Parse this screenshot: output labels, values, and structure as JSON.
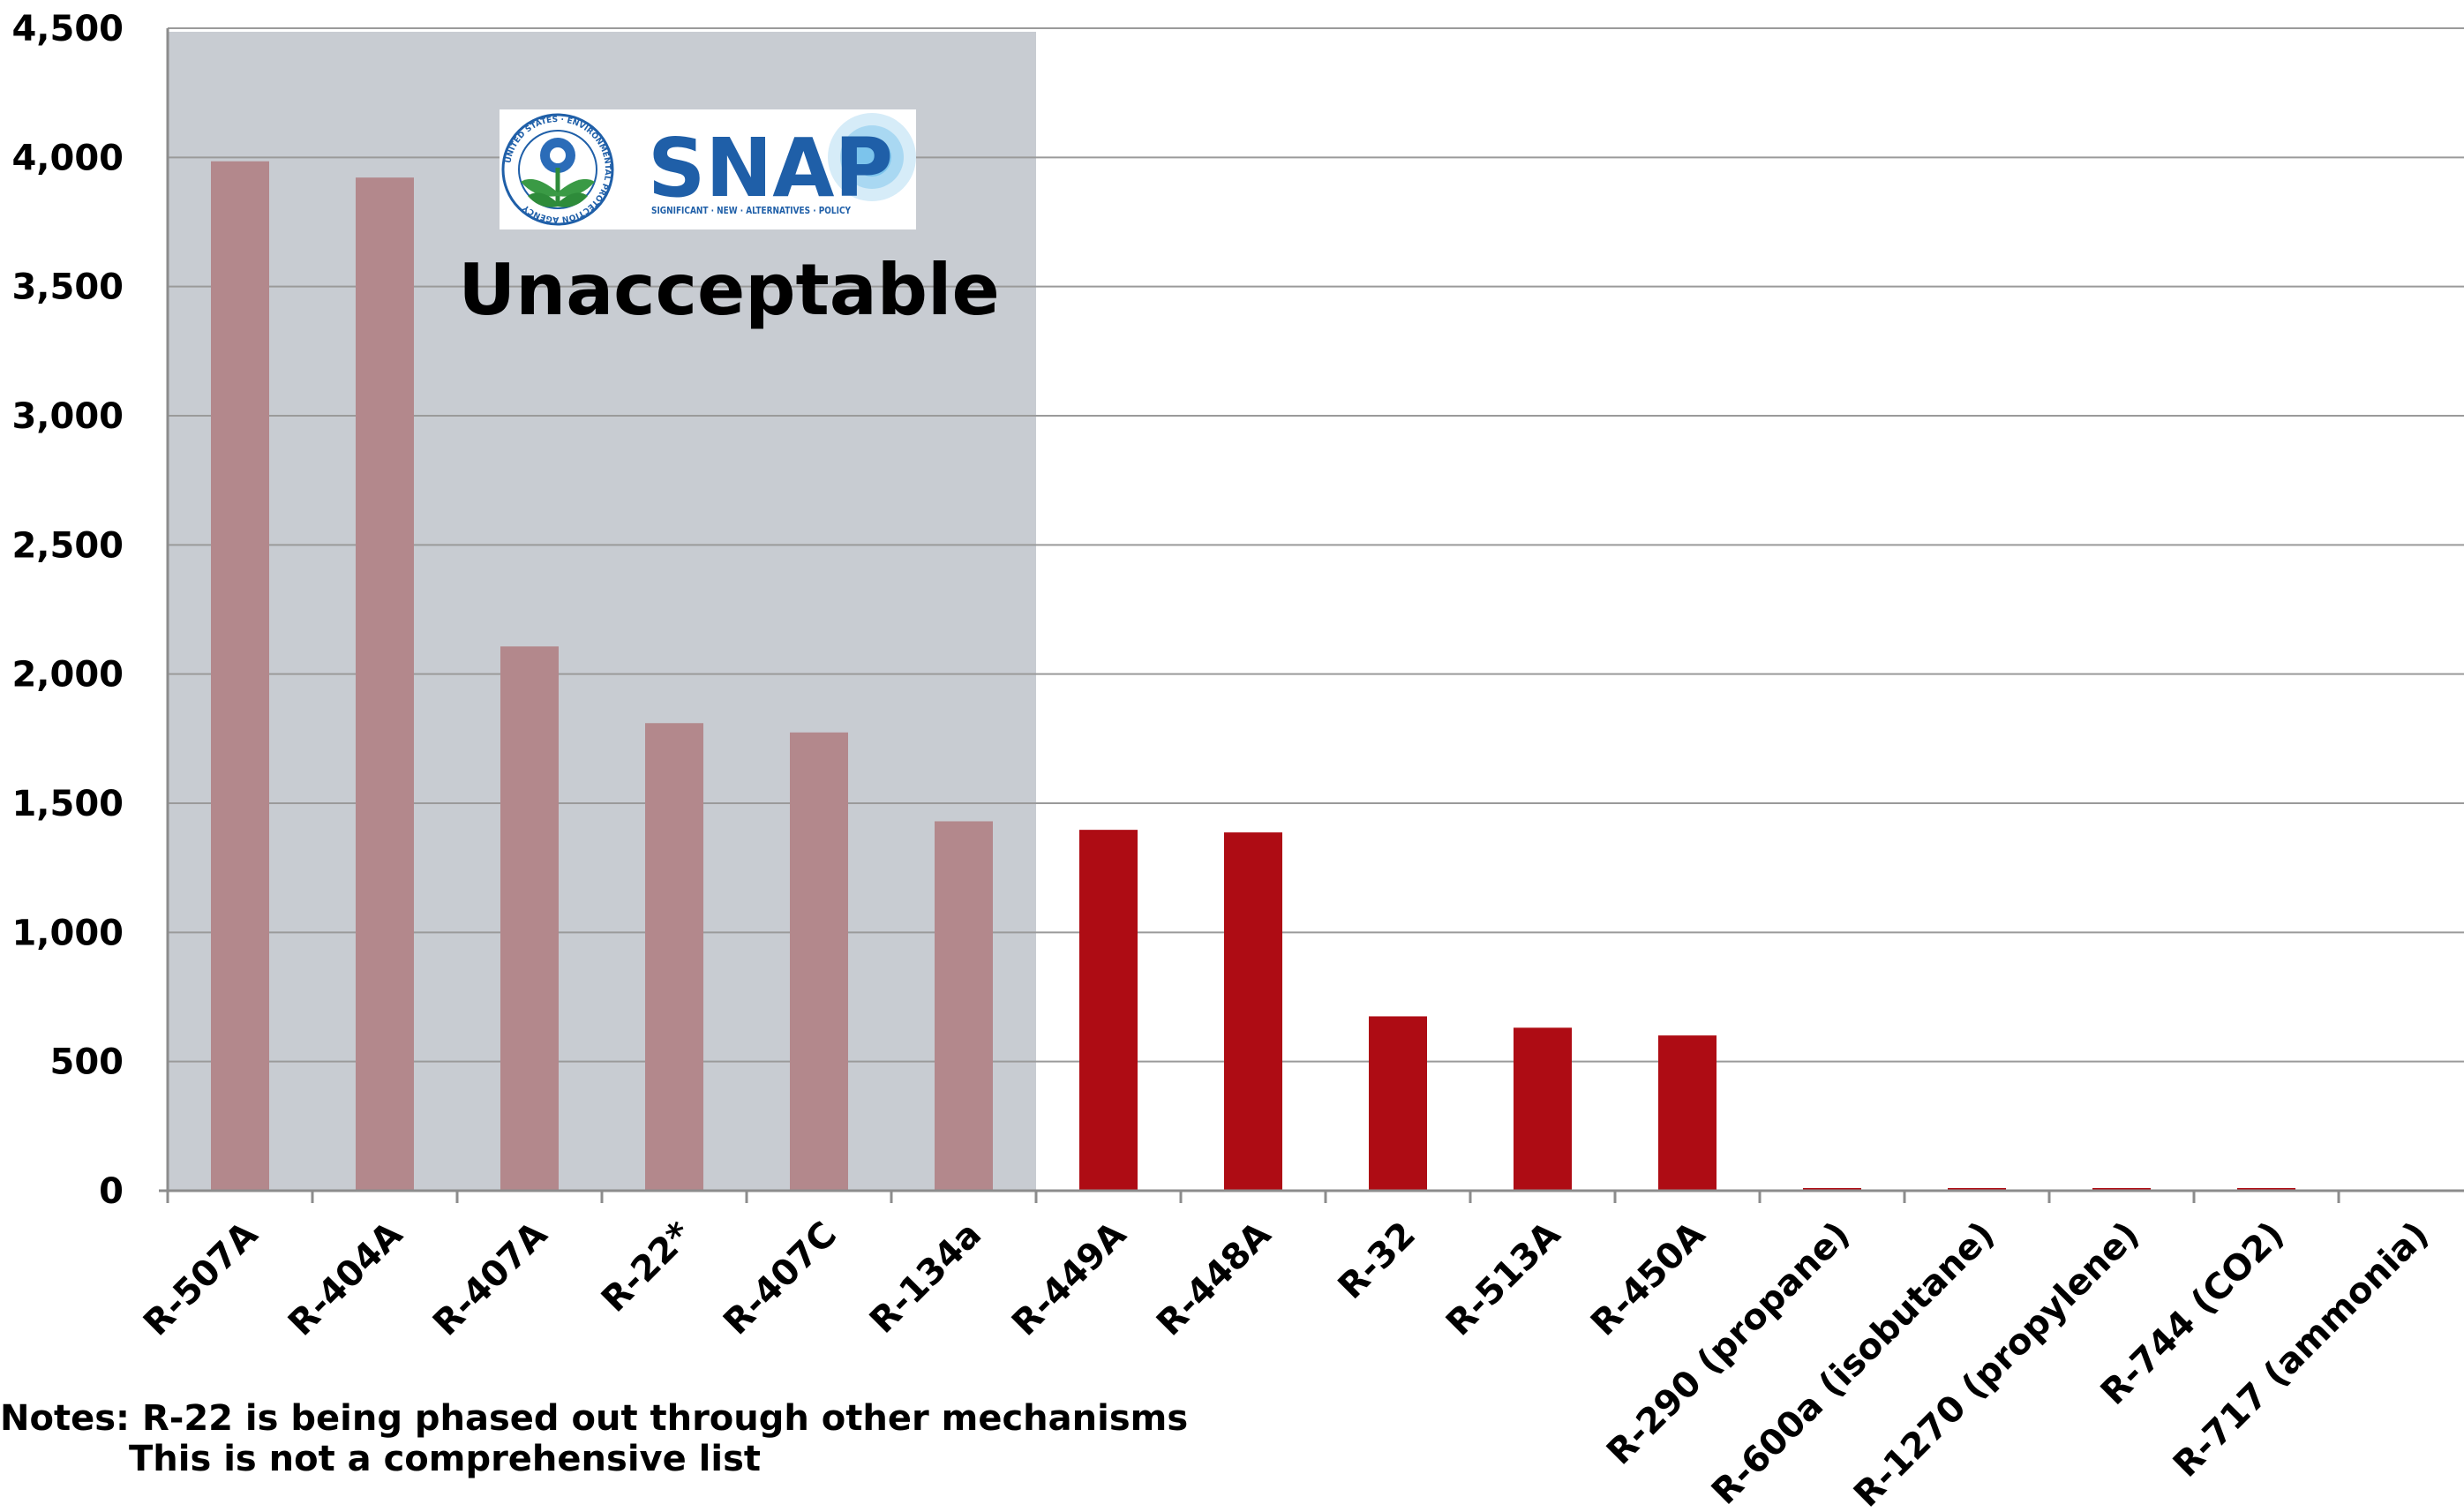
{
  "chart_data": {
    "type": "bar",
    "title": "",
    "xlabel": "",
    "ylabel": "",
    "ylim": [
      0,
      4500
    ],
    "yticks": [
      0,
      500,
      1000,
      1500,
      2000,
      2500,
      3000,
      3500,
      4000,
      4500
    ],
    "ytick_labels": [
      "0",
      "500",
      "1,000",
      "1,500",
      "2,000",
      "2,500",
      "3,000",
      "3,500",
      "4,000",
      "4,500"
    ],
    "grid": true,
    "categories": [
      "R-507A",
      "R-404A",
      "R-407A",
      "R-22*",
      "R-407C",
      "R-134a",
      "R-449A",
      "R-448A",
      "R-32",
      "R-513A",
      "R-450A",
      "R-290 (propane)",
      "R-600a (isobutane)",
      "R-1270 (propylene)",
      "R-744 (CO2)",
      "R-717 (ammonia)"
    ],
    "values": [
      3985,
      3922,
      2107,
      1810,
      1774,
      1430,
      1397,
      1387,
      675,
      631,
      601,
      3,
      3,
      2,
      1,
      0
    ],
    "groups": [
      "unacceptable",
      "unacceptable",
      "unacceptable",
      "unacceptable",
      "unacceptable",
      "unacceptable",
      "acceptable",
      "acceptable",
      "acceptable",
      "acceptable",
      "acceptable",
      "acceptable",
      "acceptable",
      "acceptable",
      "acceptable",
      "acceptable"
    ],
    "colors": {
      "unacceptable": "#b3888c",
      "acceptable": "#ae0c14",
      "shaded_region": "#c8ccd2",
      "grid": "#9a9a9a"
    },
    "shaded_region": {
      "from_category": "R-507A",
      "to_category": "R-134a",
      "label": "Unacceptable"
    },
    "logo": {
      "word": "SNAP",
      "tagline": "SIGNIFICANT · NEW · ALTERNATIVES · POLICY",
      "seal_text": "UNITED STATES · ENVIRONMENTAL PROTECTION AGENCY"
    }
  },
  "notes": {
    "line1": "Notes: R-22 is being phased out through other mechanisms",
    "line2": "This is not a comprehensive list"
  }
}
